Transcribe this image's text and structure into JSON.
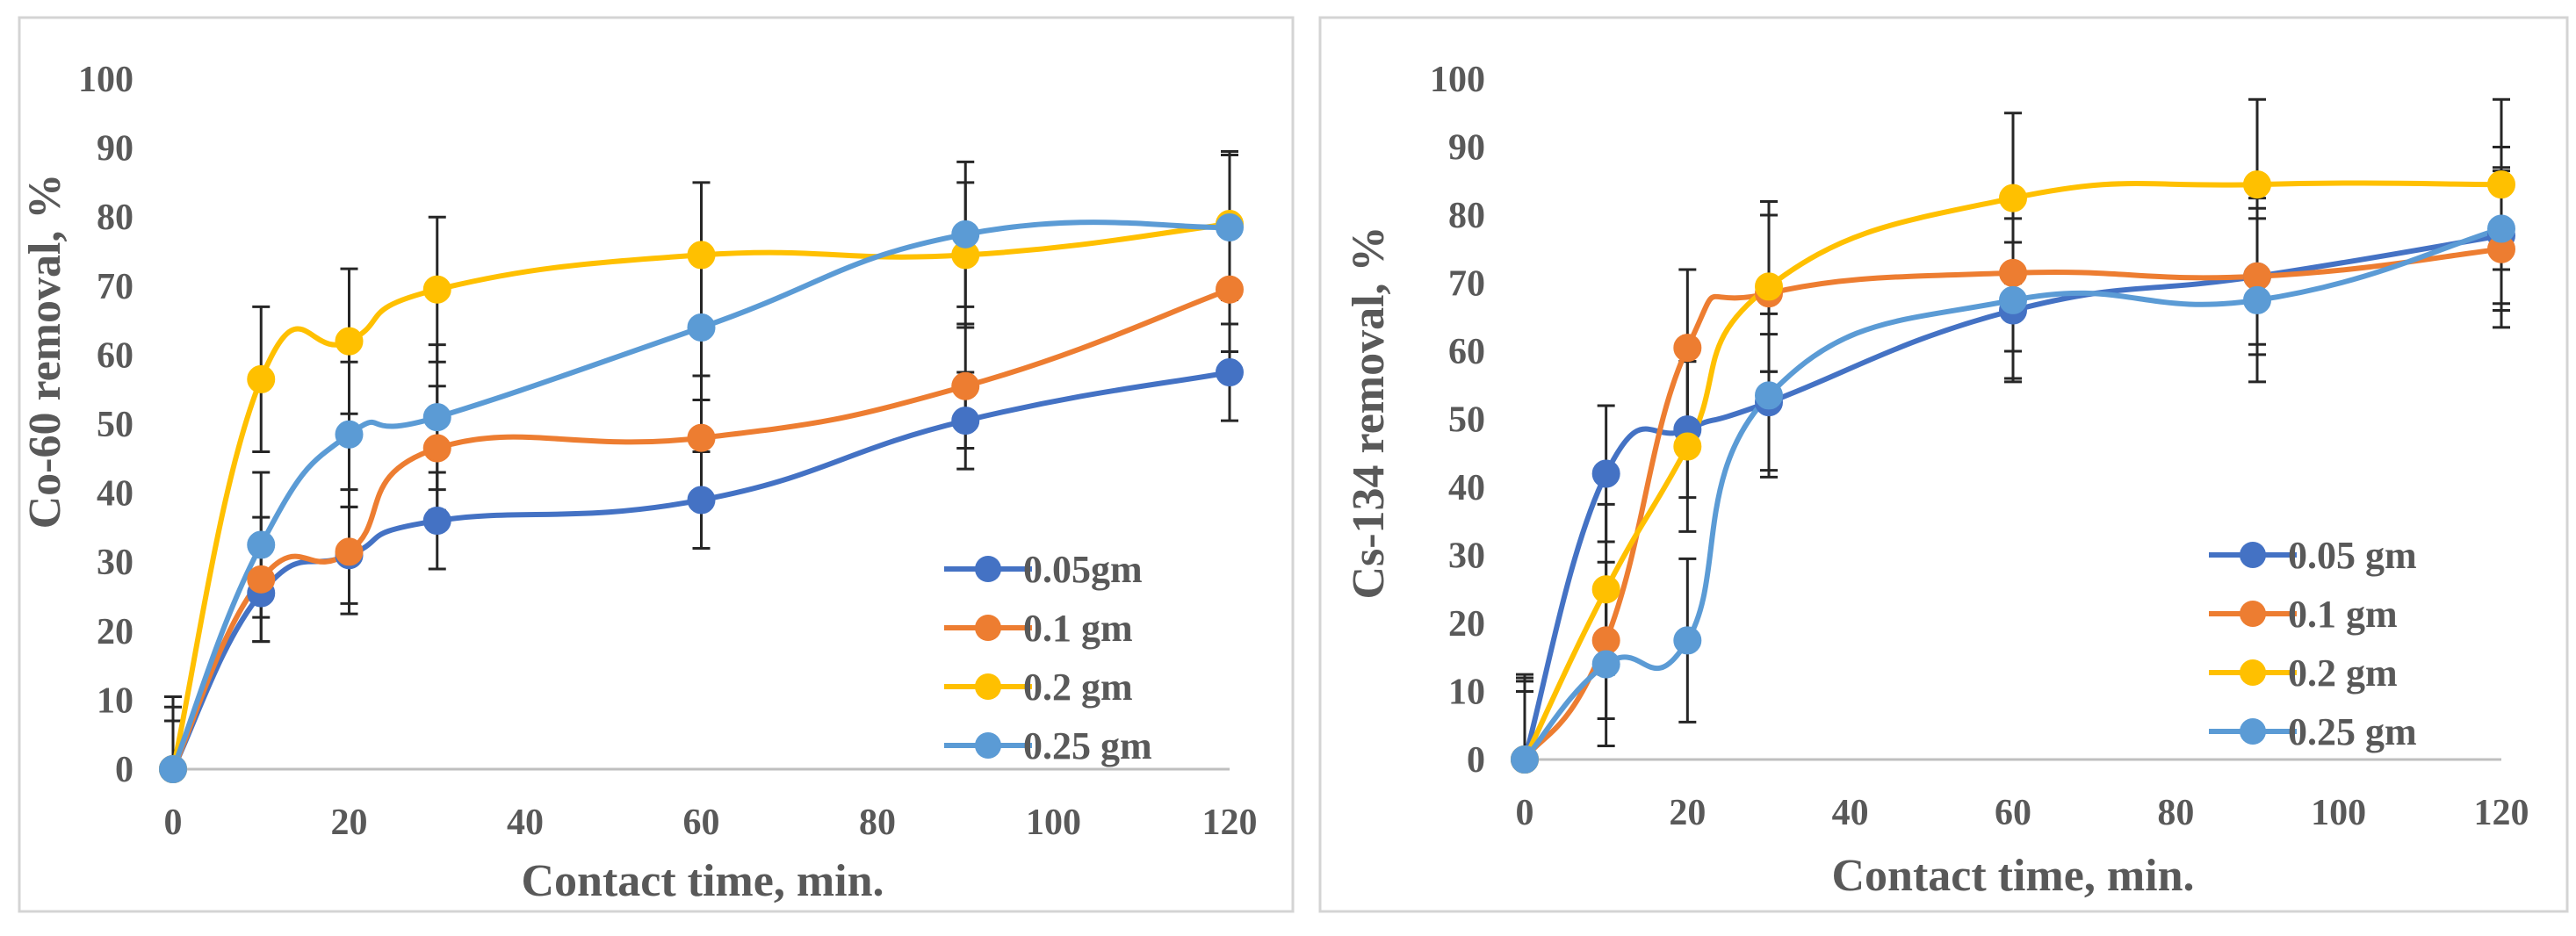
{
  "colors": {
    "axis": "#bfbfbf",
    "errorbar": "#262626",
    "series": [
      "#4472c4",
      "#ed7d31",
      "#ffc000",
      "#5b9bd5"
    ]
  },
  "chart_data": [
    {
      "type": "line",
      "title": "",
      "xlabel": "Contact time, min.",
      "ylabel": "Co-60 removal, %",
      "xlim": [
        0,
        120
      ],
      "ylim": [
        0,
        100
      ],
      "x_ticks": [
        "0",
        "20",
        "40",
        "60",
        "80",
        "100",
        "120"
      ],
      "y_ticks": [
        "0",
        "10",
        "20",
        "30",
        "40",
        "50",
        "60",
        "70",
        "80",
        "90",
        "100"
      ],
      "x": [
        0,
        10,
        20,
        30,
        60,
        90,
        120
      ],
      "legend_position": "bottom-right",
      "series": [
        {
          "name": "0.05gm",
          "values": [
            0,
            25.5,
            31,
            36,
            39,
            50.5,
            57.5
          ],
          "errors": [
            7,
            7,
            7,
            7,
            7,
            7,
            7
          ]
        },
        {
          "name": "0.1 gm",
          "values": [
            0,
            27.5,
            31.5,
            46.5,
            48,
            55.5,
            69.5
          ],
          "errors": [
            9,
            9,
            9,
            9,
            9,
            9,
            9
          ]
        },
        {
          "name": "0.2 gm",
          "values": [
            0,
            56.5,
            62,
            69.5,
            74.5,
            74.5,
            79
          ],
          "errors": [
            10.5,
            10.5,
            10.5,
            10.5,
            10.5,
            10.5,
            10.5
          ]
        },
        {
          "name": "0.25 gm",
          "values": [
            0,
            32.5,
            48.5,
            51,
            64,
            77.5,
            78.5
          ],
          "errors": [
            10.5,
            10.5,
            10.5,
            10.5,
            10.5,
            10.5,
            10.5
          ]
        }
      ]
    },
    {
      "type": "line",
      "title": "",
      "xlabel": "Contact time, min.",
      "ylabel": "Cs-134 removal, %",
      "xlim": [
        0,
        120
      ],
      "ylim": [
        0,
        100
      ],
      "x_ticks": [
        "0",
        "20",
        "40",
        "60",
        "80",
        "100",
        "120"
      ],
      "y_ticks": [
        "0",
        "10",
        "20",
        "30",
        "40",
        "50",
        "60",
        "70",
        "80",
        "90",
        "100"
      ],
      "x": [
        0,
        10,
        20,
        30,
        60,
        90,
        120
      ],
      "legend_position": "bottom-right",
      "series": [
        {
          "name": "0.05 gm",
          "values": [
            0,
            42,
            48.5,
            52.5,
            66,
            71,
            77
          ],
          "errors": [
            10,
            10,
            10,
            10,
            10,
            10,
            10
          ]
        },
        {
          "name": "0.1 gm",
          "values": [
            0,
            17.5,
            60.5,
            68.5,
            71.5,
            71,
            75
          ],
          "errors": [
            11.5,
            11.5,
            11.5,
            11.5,
            11.5,
            11.5,
            11.5
          ]
        },
        {
          "name": "0.2 gm",
          "values": [
            0,
            25,
            46,
            69.5,
            82.5,
            84.5,
            84.5
          ],
          "errors": [
            12.5,
            12.5,
            12.5,
            12.5,
            12.5,
            12.5,
            12.5
          ]
        },
        {
          "name": "0.25 gm",
          "values": [
            0,
            14,
            17.5,
            53.5,
            67.5,
            67.5,
            78
          ],
          "errors": [
            12,
            12,
            12,
            12,
            12,
            12,
            12
          ]
        }
      ]
    }
  ]
}
